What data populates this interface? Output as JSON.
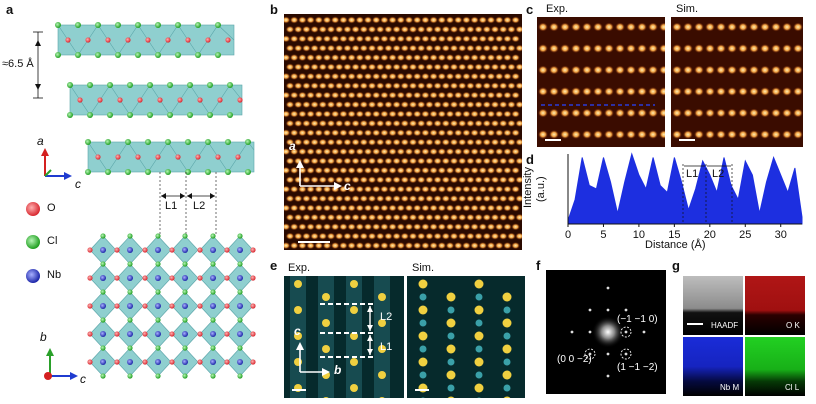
{
  "panels": {
    "a": {
      "label": "a",
      "spacing": "≈6.5 Å",
      "axis_a": "a",
      "axis_c": "c",
      "axis_b": "b",
      "axis_c2": "c",
      "L1": "L1",
      "L2": "L2",
      "legend": [
        {
          "name": "O",
          "color": "#e8484c"
        },
        {
          "name": "Cl",
          "color": "#3cc43c"
        },
        {
          "name": "Nb",
          "color": "#2e3bd0"
        }
      ]
    },
    "b": {
      "label": "b",
      "axis_a": "a",
      "axis_c": "c"
    },
    "c": {
      "label": "c",
      "exp": "Exp.",
      "sim": "Sim."
    },
    "d": {
      "label": "d",
      "ylabel_line1": "Intensity",
      "ylabel_line2": "(a.u.)",
      "xlabel": "Distance (Å)",
      "L1": "L1",
      "L2": "L2",
      "chart_data": {
        "type": "area",
        "x": [
          0,
          1,
          2,
          3,
          4,
          5,
          6,
          7,
          8,
          9,
          10,
          11,
          12,
          13,
          14,
          15,
          16,
          17,
          18,
          19,
          20,
          21,
          22,
          23,
          24,
          25,
          26,
          27,
          28,
          29,
          30,
          31,
          32,
          33
        ],
        "values": [
          0.05,
          0.35,
          0.95,
          0.55,
          0.5,
          0.95,
          0.6,
          0.15,
          0.6,
          1.0,
          0.7,
          0.5,
          0.95,
          0.55,
          0.45,
          0.95,
          0.6,
          0.2,
          0.5,
          0.9,
          0.7,
          0.45,
          0.95,
          0.55,
          0.35,
          0.9,
          0.7,
          0.15,
          0.6,
          0.95,
          0.7,
          0.45,
          0.8,
          0.1
        ],
        "xlim": [
          0,
          33
        ],
        "xticks": [
          0,
          5,
          10,
          15,
          20,
          25,
          30
        ],
        "color": "#1d2fe0"
      }
    },
    "e": {
      "label": "e",
      "exp": "Exp.",
      "sim": "Sim.",
      "L1": "L1",
      "L2": "L2",
      "axis_c": "c",
      "axis_b": "b"
    },
    "f": {
      "label": "f",
      "spot1": "(−1 −1 0)",
      "spot2": "(0 0 −2)",
      "spot3": "(1 −1 −2)"
    },
    "g": {
      "label": "g",
      "maps": [
        "HAADF",
        "O K",
        "Nb M",
        "Cl L"
      ],
      "colors": [
        "#9a9a9a",
        "#c01818",
        "#1a2cd8",
        "#1ec81e"
      ]
    }
  }
}
